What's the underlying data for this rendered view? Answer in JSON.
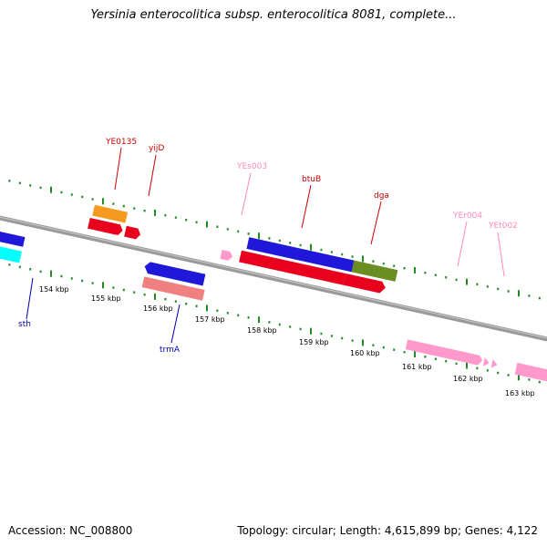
{
  "title": "Yersinia enterocolitica subsp. enterocolitica 8081, complete...",
  "footer": {
    "accession": "Accession: NC_008800",
    "stats": "Topology: circular; Length: 4,615,899 bp; Genes: 4,122"
  },
  "colors": {
    "backbone": "#808080",
    "tick": "#228b22",
    "forward_cds": "#e8001c",
    "reverse_cds": "#1f18d8",
    "trna_rrna": "#ff99cc",
    "orange_feature": "#f59a1e",
    "olive_feature": "#6b8e23",
    "cyan_feature": "#00ffff",
    "salmon_feature": "#f08080"
  },
  "scale_labels": [
    "154 kbp",
    "155 kbp",
    "156 kbp",
    "157 kbp",
    "158 kbp",
    "159 kbp",
    "160 kbp",
    "161 kbp",
    "162 kbp",
    "163 kbp"
  ],
  "gene_labels": [
    {
      "text": "YE0135",
      "color": "#cc0000"
    },
    {
      "text": "yijD",
      "color": "#cc0000"
    },
    {
      "text": "YEs003",
      "color": "#ff88bb"
    },
    {
      "text": "btuB",
      "color": "#cc0000"
    },
    {
      "text": "dga",
      "color": "#cc0000"
    },
    {
      "text": "YEr004",
      "color": "#ff88bb"
    },
    {
      "text": "YEt002",
      "color": "#ff88bb"
    },
    {
      "text": "sth",
      "color": "#0000aa"
    },
    {
      "text": "trmA",
      "color": "#0000aa"
    }
  ]
}
